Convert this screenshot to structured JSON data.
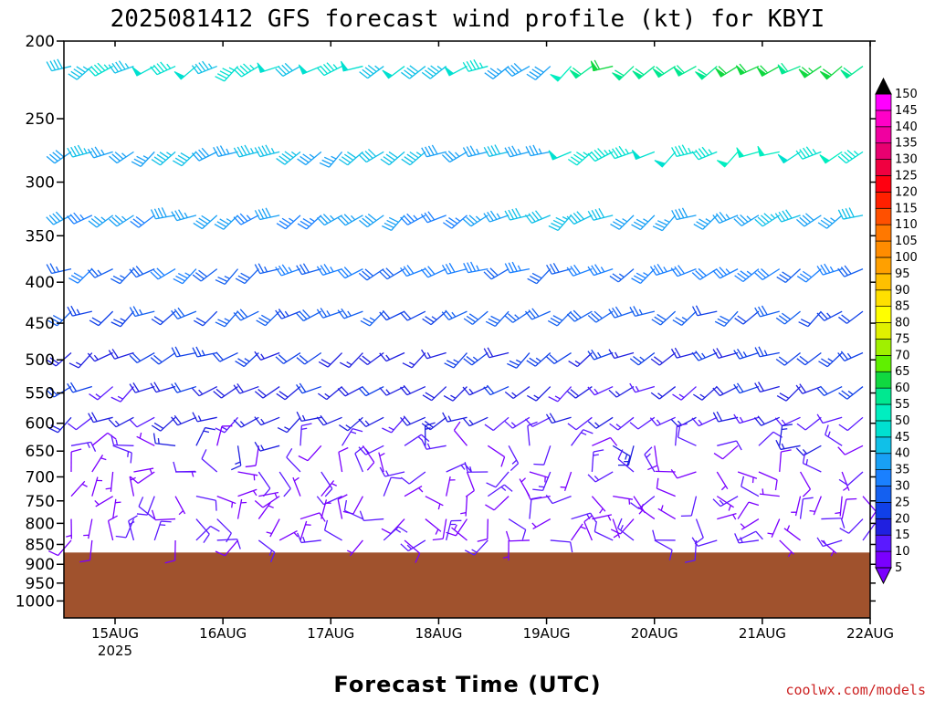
{
  "chart_data": {
    "type": "wind-barb profile",
    "title": "2025081412 GFS forecast wind profile (kt) for KBYI",
    "xlabel": "Forecast Time (UTC)",
    "ylabel": "",
    "y_axis_log": true,
    "y_reversed": true,
    "ylim": [
      1050,
      200
    ],
    "y_ticks": [
      200,
      250,
      300,
      350,
      400,
      450,
      500,
      550,
      600,
      650,
      700,
      750,
      800,
      850,
      900,
      950,
      1000
    ],
    "x_ticks": [
      {
        "label": "15AUG",
        "sub": "2025"
      },
      {
        "label": "16AUG",
        "sub": ""
      },
      {
        "label": "17AUG",
        "sub": ""
      },
      {
        "label": "18AUG",
        "sub": ""
      },
      {
        "label": "19AUG",
        "sub": ""
      },
      {
        "label": "20AUG",
        "sub": ""
      },
      {
        "label": "21AUG",
        "sub": ""
      },
      {
        "label": "22AUG",
        "sub": ""
      }
    ],
    "colorbar": {
      "units": "kt",
      "levels": [
        5,
        10,
        15,
        20,
        25,
        30,
        35,
        40,
        45,
        50,
        55,
        60,
        65,
        70,
        75,
        80,
        85,
        90,
        95,
        100,
        105,
        110,
        115,
        120,
        125,
        130,
        135,
        140,
        145,
        150
      ],
      "labels": [
        "5",
        "10",
        "15",
        "20",
        "25",
        "30",
        "35",
        "40",
        "45",
        "50",
        "55",
        "60",
        "65",
        "70",
        "75",
        "80",
        "85",
        "90",
        "95",
        "100",
        "105",
        "110",
        "115",
        "120",
        "125",
        "130",
        "135",
        "140",
        "145",
        "150"
      ]
    },
    "terrain_color": "#a0522d",
    "ground_pressure_hpa": 870,
    "barb_rows": [
      {
        "level": 215,
        "speed": 45
      },
      {
        "level": 275,
        "speed": 40
      },
      {
        "level": 330,
        "speed": 35
      },
      {
        "level": 385,
        "speed": 30
      },
      {
        "level": 435,
        "speed": 25
      },
      {
        "level": 490,
        "speed": 20
      },
      {
        "level": 540,
        "speed": 18
      },
      {
        "level": 590,
        "speed": 15
      },
      {
        "level": 640,
        "speed": 12
      },
      {
        "level": 690,
        "speed": 10
      },
      {
        "level": 740,
        "speed": 8
      },
      {
        "level": 790,
        "speed": 8
      },
      {
        "level": 840,
        "speed": 10
      }
    ]
  },
  "credit": "coolwx.com/models"
}
